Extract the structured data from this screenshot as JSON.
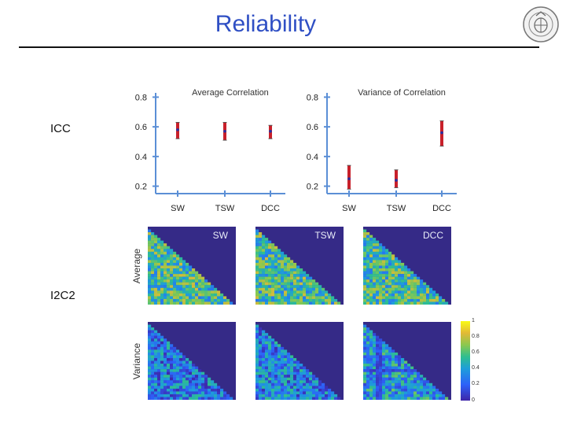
{
  "header": {
    "title": "Reliability"
  },
  "rows": {
    "icc_label": "ICC",
    "i2c2_label": "I2C2"
  },
  "colors": {
    "title": "#2f4fc4",
    "axis": "#5b8fd6",
    "errorbar": "#c8202a",
    "point": "#2433a8",
    "heatmap_low": "#352a87",
    "heatmap_high": "#f9fb0e"
  },
  "chart_data": [
    {
      "type": "scatter",
      "title": "Average Correlation",
      "categories": [
        "SW",
        "TSW",
        "DCC"
      ],
      "ylim": [
        0.15,
        0.85
      ],
      "yticks": [
        "0.2",
        "0.4",
        "0.6",
        "0.8"
      ],
      "ytick_values": [
        0.2,
        0.4,
        0.6,
        0.8
      ],
      "series": [
        {
          "name": "ICC",
          "values": [
            0.58,
            0.57,
            0.57
          ],
          "lower": [
            0.52,
            0.51,
            0.52
          ],
          "upper": [
            0.63,
            0.63,
            0.61
          ]
        }
      ]
    },
    {
      "type": "scatter",
      "title": "Variance of Correlation",
      "categories": [
        "SW",
        "TSW",
        "DCC"
      ],
      "ylim": [
        0.15,
        0.85
      ],
      "yticks": [
        "0.2",
        "0.4",
        "0.6",
        "0.8"
      ],
      "ytick_values": [
        0.2,
        0.4,
        0.6,
        0.8
      ],
      "series": [
        {
          "name": "ICC",
          "values": [
            0.25,
            0.24,
            0.56
          ],
          "lower": [
            0.18,
            0.19,
            0.47
          ],
          "upper": [
            0.34,
            0.31,
            0.64
          ]
        }
      ]
    },
    {
      "type": "heatmap",
      "title": "I2C2",
      "row_labels": [
        "Average",
        "Variance"
      ],
      "columns": [
        "SW",
        "TSW",
        "DCC"
      ],
      "colorbar_ticks": [
        "1",
        "0.8",
        "0.6",
        "0.4",
        "0.2",
        "0"
      ],
      "colorbar_range": [
        0,
        1
      ],
      "mean_values": [
        [
          0.55,
          0.55,
          0.55
        ],
        [
          0.28,
          0.3,
          0.38
        ]
      ]
    }
  ]
}
